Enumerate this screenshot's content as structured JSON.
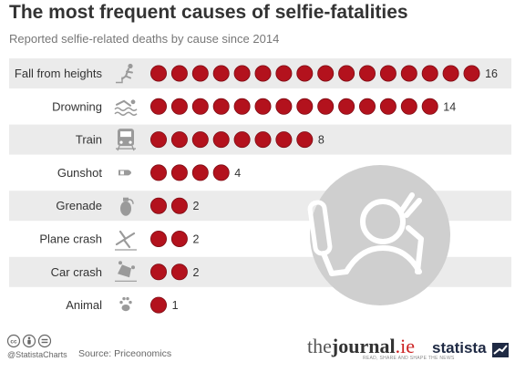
{
  "header": {
    "title": "The most frequent causes of selfie-fatalities",
    "subtitle": "Reported selfie-related deaths by cause since 2014"
  },
  "chart_data": {
    "type": "bar",
    "title": "The most frequent causes of selfie-fatalities",
    "subtitle": "Reported selfie-related deaths by cause since 2014",
    "categories": [
      "Fall from heights",
      "Drowning",
      "Train",
      "Gunshot",
      "Grenade",
      "Plane crash",
      "Car crash",
      "Animal"
    ],
    "values": [
      16,
      14,
      8,
      4,
      2,
      2,
      2,
      1
    ],
    "icons": [
      "falling-person-icon",
      "swimmer-in-waves-icon",
      "train-icon",
      "bullet-icon",
      "grenade-icon",
      "crashing-plane-icon",
      "overturned-car-icon",
      "paw-print-icon"
    ],
    "unit_marker": "dot",
    "grid": false,
    "legend": "none"
  },
  "colors": {
    "dot": "#b3121d",
    "dot_stroke": "#7d0c14",
    "stripe": "#ebebeb",
    "icon": "#9a9a9a",
    "selfie_circle": "#cfcfcf"
  },
  "decor": {
    "illustration": "person-taking-selfie-icon"
  },
  "footer": {
    "handle": "@StatistaCharts",
    "source": "Source: Priceonomics",
    "journal_logo": {
      "the": "the",
      "journal": "journal",
      "ie": ".ie",
      "tagline": "READ, SHARE AND SHAPE THE NEWS"
    },
    "statista_logo": "statista",
    "license_icons": [
      "creative-commons-icon",
      "attribution-icon",
      "equals-icon"
    ]
  }
}
